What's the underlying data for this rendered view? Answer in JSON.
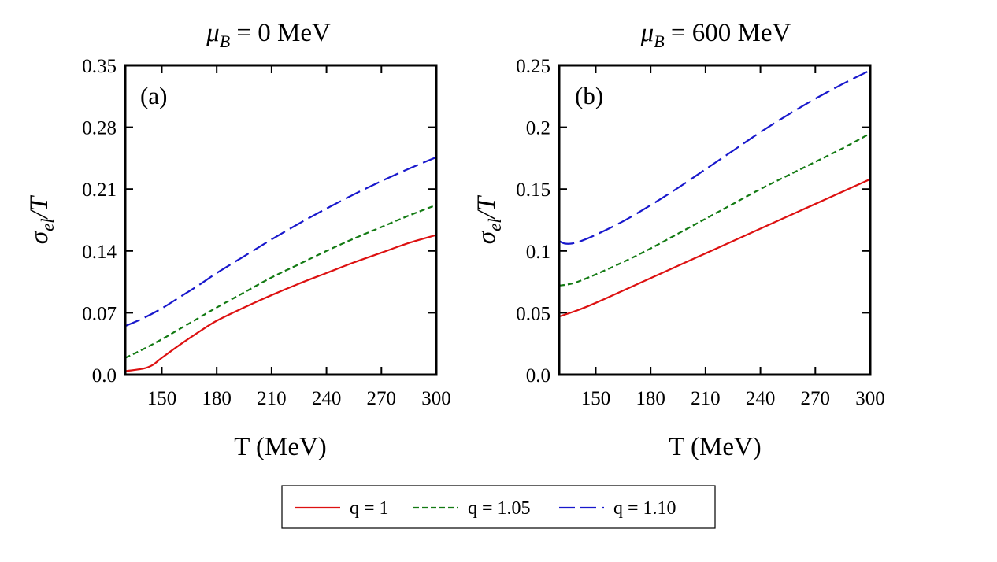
{
  "colors": {
    "q1": "#dd1111",
    "q105": "#137a13",
    "q110": "#1818cc"
  },
  "legend": {
    "items": [
      {
        "label": "q = 1",
        "color": "#dd1111",
        "dash": "solid"
      },
      {
        "label": "q = 1.05",
        "color": "#137a13",
        "dash": "short"
      },
      {
        "label": "q = 1.10",
        "color": "#1818cc",
        "dash": "long"
      }
    ]
  },
  "chart_data": [
    {
      "type": "line",
      "title": "μB = 0 MeV",
      "title_main": "μ",
      "title_sub": "B",
      "title_rest": " = 0 MeV",
      "panel_label": "(a)",
      "xlabel": "T (MeV)",
      "ylabel_main": "σ",
      "ylabel_sub": "el",
      "ylabel_rest": "/T",
      "xlim": [
        130,
        300
      ],
      "ylim": [
        0,
        0.35
      ],
      "xticks": [
        150,
        180,
        210,
        240,
        270,
        300
      ],
      "xtick_labels": [
        "150",
        "180",
        "210",
        "240",
        "270",
        "300"
      ],
      "yticks": [
        0,
        0.07,
        0.14,
        0.21,
        0.28,
        0.35
      ],
      "ytick_labels": [
        "0.0",
        "0.07",
        "0.14",
        "0.21",
        "0.28",
        "0.35"
      ],
      "grid": false,
      "series": [
        {
          "name": "q = 1",
          "color": "#dd1111",
          "dash": "solid",
          "x": [
            130,
            140,
            145,
            150,
            160,
            170,
            180,
            195,
            210,
            225,
            240,
            255,
            270,
            285,
            300
          ],
          "y": [
            0.004,
            0.007,
            0.011,
            0.019,
            0.034,
            0.048,
            0.061,
            0.076,
            0.09,
            0.103,
            0.115,
            0.127,
            0.138,
            0.149,
            0.158
          ]
        },
        {
          "name": "q = 1.05",
          "color": "#137a13",
          "dash": "short",
          "x": [
            130,
            140,
            150,
            160,
            170,
            180,
            195,
            210,
            225,
            240,
            255,
            270,
            285,
            300
          ],
          "y": [
            0.019,
            0.029,
            0.04,
            0.052,
            0.064,
            0.076,
            0.093,
            0.11,
            0.125,
            0.14,
            0.154,
            0.167,
            0.18,
            0.192
          ]
        },
        {
          "name": "q = 1.10",
          "color": "#1818cc",
          "dash": "long",
          "x": [
            130,
            140,
            150,
            160,
            170,
            180,
            195,
            210,
            225,
            240,
            255,
            270,
            285,
            300
          ],
          "y": [
            0.055,
            0.064,
            0.075,
            0.088,
            0.101,
            0.115,
            0.134,
            0.153,
            0.171,
            0.188,
            0.204,
            0.219,
            0.233,
            0.246
          ]
        }
      ]
    },
    {
      "type": "line",
      "title": "μB = 600 MeV",
      "title_main": "μ",
      "title_sub": "B",
      "title_rest": " = 600 MeV",
      "panel_label": "(b)",
      "xlabel": "T (MeV)",
      "ylabel_main": "σ",
      "ylabel_sub": "el",
      "ylabel_rest": "/T",
      "xlim": [
        130,
        300
      ],
      "ylim": [
        0,
        0.25
      ],
      "xticks": [
        150,
        180,
        210,
        240,
        270,
        300
      ],
      "xtick_labels": [
        "150",
        "180",
        "210",
        "240",
        "270",
        "300"
      ],
      "yticks": [
        0,
        0.05,
        0.1,
        0.15,
        0.2,
        0.25
      ],
      "ytick_labels": [
        "0.0",
        "0.05",
        "0.1",
        "0.15",
        "0.2",
        "0.25"
      ],
      "grid": false,
      "series": [
        {
          "name": "q = 1",
          "color": "#dd1111",
          "dash": "solid",
          "x": [
            130,
            140,
            150,
            165,
            180,
            195,
            210,
            225,
            240,
            255,
            270,
            285,
            300
          ],
          "y": [
            0.047,
            0.052,
            0.058,
            0.068,
            0.078,
            0.088,
            0.098,
            0.108,
            0.118,
            0.128,
            0.138,
            0.148,
            0.158
          ]
        },
        {
          "name": "q = 1.05",
          "color": "#137a13",
          "dash": "short",
          "x": [
            130,
            135,
            140,
            150,
            165,
            180,
            195,
            210,
            225,
            240,
            255,
            270,
            285,
            300
          ],
          "y": [
            0.072,
            0.073,
            0.075,
            0.081,
            0.091,
            0.102,
            0.114,
            0.126,
            0.138,
            0.15,
            0.161,
            0.172,
            0.183,
            0.195
          ]
        },
        {
          "name": "q = 1.10",
          "color": "#1818cc",
          "dash": "long",
          "x": [
            130,
            133,
            137,
            142,
            150,
            165,
            180,
            195,
            210,
            225,
            240,
            255,
            270,
            285,
            300
          ],
          "y": [
            0.108,
            0.106,
            0.106,
            0.108,
            0.113,
            0.124,
            0.137,
            0.151,
            0.166,
            0.181,
            0.196,
            0.21,
            0.223,
            0.235,
            0.246
          ]
        }
      ]
    }
  ]
}
